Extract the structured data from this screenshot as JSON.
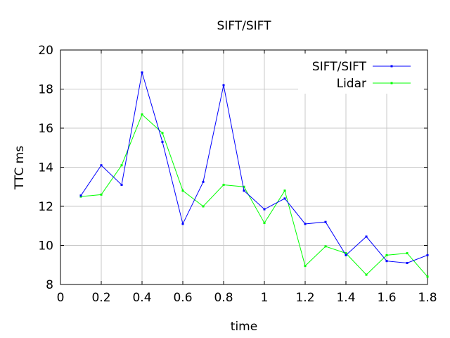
{
  "chart_data": {
    "type": "line",
    "title": "SIFT/SIFT",
    "xlabel": "time",
    "ylabel": "TTC ms",
    "xlim": [
      0,
      1.8
    ],
    "ylim": [
      8,
      20
    ],
    "xticks": [
      "0",
      "0.2",
      "0.4",
      "0.6",
      "0.8",
      "1",
      "1.2",
      "1.4",
      "1.6",
      "1.8"
    ],
    "yticks": [
      "8",
      "10",
      "12",
      "14",
      "16",
      "18",
      "20"
    ],
    "grid": true,
    "legend_position": "top-right",
    "x": [
      0.1,
      0.2,
      0.3,
      0.4,
      0.5,
      0.6,
      0.7,
      0.8,
      0.9,
      1.0,
      1.1,
      1.2,
      1.3,
      1.4,
      1.5,
      1.6,
      1.7,
      1.8
    ],
    "series": [
      {
        "name": "SIFT/SIFT",
        "color": "#0000ff",
        "values": [
          12.55,
          14.1,
          13.1,
          18.85,
          15.3,
          11.1,
          13.25,
          18.2,
          12.8,
          11.85,
          12.4,
          11.1,
          11.2,
          9.5,
          10.45,
          9.2,
          9.1,
          9.5
        ]
      },
      {
        "name": "Lidar",
        "color": "#00ff00",
        "values": [
          12.5,
          12.6,
          14.1,
          16.7,
          15.75,
          12.8,
          12.0,
          13.1,
          13.0,
          11.15,
          12.8,
          8.95,
          9.95,
          9.6,
          8.5,
          9.5,
          9.6,
          8.4
        ]
      }
    ]
  }
}
